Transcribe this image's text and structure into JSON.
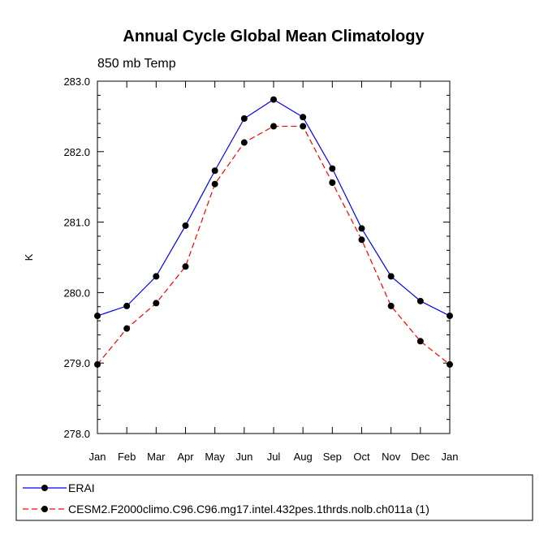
{
  "chart_data": {
    "type": "line",
    "title": "Annual Cycle Global Mean Climatology",
    "subtitle": "850 mb Temp",
    "xlabel": "",
    "ylabel": "K",
    "categories": [
      "Jan",
      "Feb",
      "Mar",
      "Apr",
      "May",
      "Jun",
      "Jul",
      "Aug",
      "Sep",
      "Oct",
      "Nov",
      "Dec",
      "Jan"
    ],
    "yticks": [
      "278.0",
      "279.0",
      "280.0",
      "281.0",
      "282.0",
      "283.0"
    ],
    "ylim": [
      278.0,
      283.0
    ],
    "grid": false,
    "legend_position": "bottom",
    "series": [
      {
        "name": "ERAI",
        "color": "#0000ff",
        "dash": "solid",
        "values": [
          279.67,
          279.81,
          280.23,
          280.95,
          281.73,
          282.47,
          282.74,
          282.49,
          281.76,
          280.91,
          280.23,
          279.88,
          279.67
        ]
      },
      {
        "name": "CESM2.F2000climo.C96.C96.mg17.intel.432pes.1thrds.nolb.ch011a (1)",
        "color": "#ff0000",
        "dash": "dashed",
        "values": [
          278.98,
          279.49,
          279.85,
          280.37,
          281.54,
          282.13,
          282.36,
          282.36,
          281.56,
          280.75,
          279.81,
          279.31,
          278.98
        ]
      }
    ]
  }
}
